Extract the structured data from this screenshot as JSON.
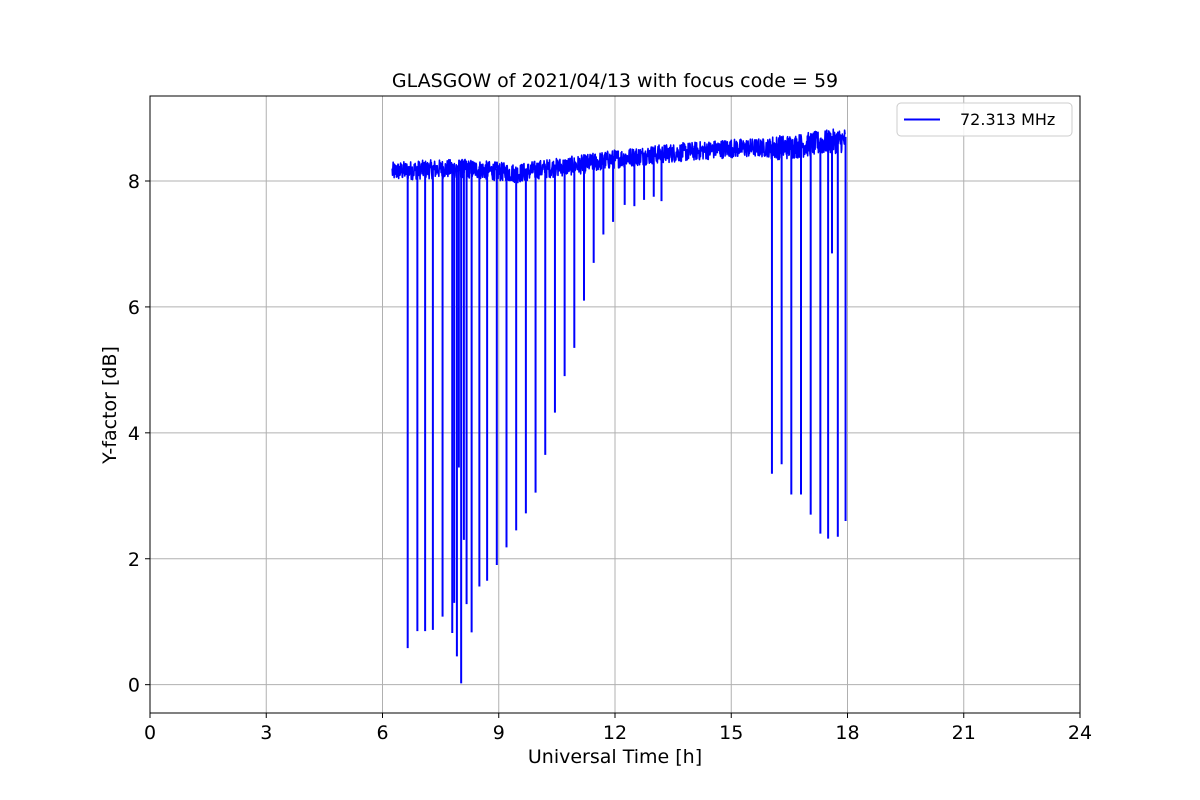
{
  "chart_data": {
    "type": "line",
    "title": "GLASGOW of 2021/04/13 with focus code = 59",
    "xlabel": "Universal Time [h]",
    "ylabel": "Y-factor [dB]",
    "xlim": [
      0,
      24
    ],
    "ylim": [
      -0.45,
      9.35
    ],
    "xticks": [
      0,
      3,
      6,
      9,
      12,
      15,
      18,
      21,
      24
    ],
    "yticks": [
      0,
      2,
      4,
      6,
      8
    ],
    "grid": true,
    "legend_position": "top-right",
    "series": [
      {
        "name": "72.313 MHz",
        "color": "#0000ff",
        "baseline": {
          "x": [
            6.25,
            7.0,
            8.0,
            8.5,
            9.0,
            9.5,
            10.0,
            11.0,
            12.0,
            13.0,
            14.0,
            15.0,
            16.0,
            16.5,
            17.0,
            17.5,
            17.95
          ],
          "y": [
            8.15,
            8.18,
            8.2,
            8.18,
            8.15,
            8.12,
            8.18,
            8.25,
            8.35,
            8.42,
            8.47,
            8.52,
            8.53,
            8.54,
            8.58,
            8.62,
            8.65
          ]
        },
        "noise_amplitude": 0.15,
        "dips": {
          "x": [
            6.65,
            6.9,
            7.1,
            7.3,
            7.55,
            7.8,
            7.85,
            7.92,
            7.97,
            8.03,
            8.1,
            8.17,
            8.3,
            8.5,
            8.7,
            8.95,
            9.2,
            9.45,
            9.7,
            9.95,
            10.2,
            10.45,
            10.7,
            10.95,
            11.2,
            11.45,
            11.7,
            11.95,
            12.25,
            12.5,
            12.75,
            13.0,
            13.2,
            16.05,
            16.3,
            16.55,
            16.8,
            17.05,
            17.3,
            17.5,
            17.6,
            17.75,
            17.95
          ],
          "y": [
            0.58,
            0.85,
            0.85,
            0.87,
            1.08,
            0.82,
            1.3,
            0.45,
            3.45,
            0.02,
            2.3,
            1.28,
            0.83,
            1.56,
            1.65,
            1.9,
            2.18,
            2.45,
            2.72,
            3.05,
            3.65,
            4.32,
            4.9,
            5.35,
            6.1,
            6.7,
            7.15,
            7.35,
            7.62,
            7.6,
            7.7,
            7.75,
            7.68,
            3.35,
            3.5,
            3.02,
            3.02,
            2.7,
            2.4,
            2.32,
            6.85,
            2.35,
            2.6
          ]
        }
      }
    ]
  }
}
